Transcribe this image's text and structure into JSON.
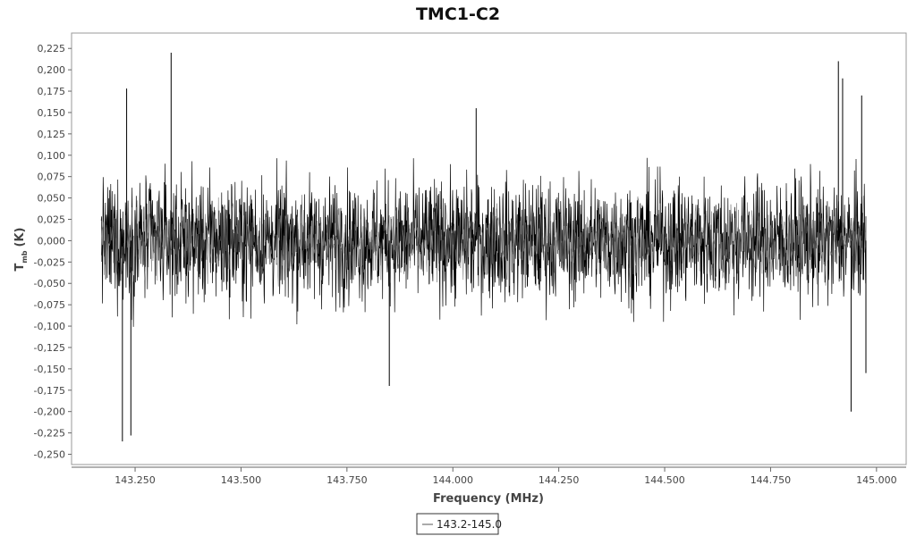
{
  "chart_data": {
    "type": "line",
    "title": "TMC1-C2",
    "xlabel": "Frequency (MHz)",
    "ylabel_main": "T",
    "ylabel_sub": "mb",
    "ylabel_unit": "(K)",
    "xlim": [
      143.1,
      145.07
    ],
    "ylim": [
      -0.262,
      0.243
    ],
    "x_ticks": [
      143.25,
      143.5,
      143.75,
      144.0,
      144.25,
      144.5,
      144.75,
      145.0
    ],
    "x_tick_labels": [
      "143.250",
      "143.500",
      "143.750",
      "144.000",
      "144.250",
      "144.500",
      "144.750",
      "145.000"
    ],
    "y_ticks": [
      0.225,
      0.2,
      0.175,
      0.15,
      0.125,
      0.1,
      0.075,
      0.05,
      0.025,
      0.0,
      -0.025,
      -0.05,
      -0.075,
      -0.1,
      -0.125,
      -0.15,
      -0.175,
      -0.2,
      -0.225,
      -0.25
    ],
    "y_tick_labels": [
      "0,225",
      "0,200",
      "0,175",
      "0,150",
      "0,125",
      "0,100",
      "0,075",
      "0,050",
      "0,025",
      "0,000",
      "-0,025",
      "-0,050",
      "-0,075",
      "-0,100",
      "-0,125",
      "-0,150",
      "-0,175",
      "-0,200",
      "-0,225",
      "-0,250"
    ],
    "series": [
      {
        "name": "143.2-145.0",
        "color": "#000000",
        "x_start": 143.17,
        "x_end": 144.975,
        "noise_rms": 0.048,
        "noise_center": 0.0,
        "spikes": [
          {
            "x": 143.22,
            "y": -0.235
          },
          {
            "x": 143.23,
            "y": 0.178
          },
          {
            "x": 143.24,
            "y": -0.228
          },
          {
            "x": 143.335,
            "y": 0.22
          },
          {
            "x": 143.85,
            "y": -0.17
          },
          {
            "x": 144.055,
            "y": 0.155
          },
          {
            "x": 144.91,
            "y": 0.21
          },
          {
            "x": 144.92,
            "y": 0.19
          },
          {
            "x": 144.94,
            "y": -0.2
          },
          {
            "x": 144.965,
            "y": 0.17
          },
          {
            "x": 144.975,
            "y": -0.155
          }
        ]
      }
    ],
    "grid": false,
    "legend": {
      "position": "bottom-center",
      "entries": [
        "143.2-145.0"
      ]
    }
  }
}
